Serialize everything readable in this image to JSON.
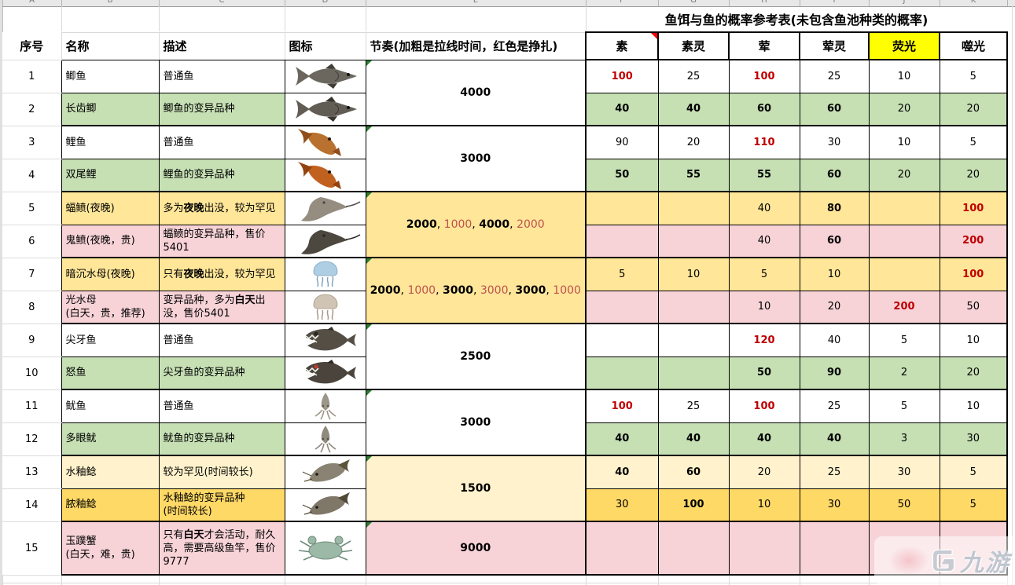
{
  "title": "鱼饵与鱼的概率参考表(未包含鱼池种类的概率)",
  "column_letters": [
    "A",
    "B",
    "C",
    "D",
    "E",
    "F",
    "G",
    "H",
    "I",
    "J",
    "K"
  ],
  "headers": {
    "index": "序号",
    "name": "名称",
    "desc": "描述",
    "icon": "图标",
    "tempo": "节奏(加粗是拉线时间，红色是挣扎)"
  },
  "bait_headers": [
    {
      "label": "素",
      "marker": "red-corner"
    },
    {
      "label": "素灵"
    },
    {
      "label": "荤"
    },
    {
      "label": "荤灵"
    },
    {
      "label": "荧光",
      "bg": "#ffff00"
    },
    {
      "label": "噬光"
    }
  ],
  "colors": {
    "green": "#c6e0b4",
    "yellow": "#ffe699",
    "pink": "#f7d3d8",
    "paleyellow": "#fff2cc",
    "gold": "#ffd966",
    "white": "#ffffff",
    "highlight": "#ffff00",
    "prob_red": "#c00000",
    "tempo_red": "#c0504d"
  },
  "rows": [
    {
      "no": "1",
      "bg": "white",
      "icon": "crucian-carp-icon",
      "name": [
        {
          "t": "鲫鱼"
        }
      ],
      "desc": [
        {
          "t": "普通鱼"
        }
      ],
      "probs": [
        {
          "v": "100",
          "red": 1,
          "bold": 1
        },
        {
          "v": "25"
        },
        {
          "v": "100",
          "red": 1,
          "bold": 1
        },
        {
          "v": "25"
        },
        {
          "v": "10"
        },
        {
          "v": "5"
        }
      ]
    },
    {
      "no": "2",
      "bg": "green",
      "icon": "longtooth-crucian-icon",
      "name": [
        {
          "t": "长齿鲫"
        }
      ],
      "desc": [
        {
          "t": "鲫鱼的变异品种"
        }
      ],
      "probs": [
        {
          "v": "40",
          "bold": 1
        },
        {
          "v": "40",
          "bold": 1
        },
        {
          "v": "60",
          "bold": 1
        },
        {
          "v": "60",
          "bold": 1
        },
        {
          "v": "20"
        },
        {
          "v": "20"
        }
      ]
    },
    {
      "no": "3",
      "bg": "white",
      "icon": "carp-icon",
      "name": [
        {
          "t": "鲤鱼"
        }
      ],
      "desc": [
        {
          "t": "普通鱼"
        }
      ],
      "probs": [
        {
          "v": "90"
        },
        {
          "v": "20"
        },
        {
          "v": "110",
          "red": 1,
          "bold": 1
        },
        {
          "v": "30"
        },
        {
          "v": "10"
        },
        {
          "v": "5"
        }
      ]
    },
    {
      "no": "4",
      "bg": "green",
      "icon": "twin-tail-carp-icon",
      "name": [
        {
          "t": "双尾鲤"
        }
      ],
      "desc": [
        {
          "t": "鲤鱼的变异品种"
        }
      ],
      "probs": [
        {
          "v": "50",
          "bold": 1
        },
        {
          "v": "55",
          "bold": 1
        },
        {
          "v": "55",
          "bold": 1
        },
        {
          "v": "60",
          "bold": 1
        },
        {
          "v": "20"
        },
        {
          "v": "20"
        }
      ]
    },
    {
      "no": "5",
      "bg": "yellow",
      "icon": "manta-ray-icon",
      "name": [
        {
          "t": "蝠鲼(夜晚)"
        }
      ],
      "desc": [
        {
          "t": "多为"
        },
        {
          "t": "夜晚",
          "bold": 1
        },
        {
          "t": "出没，较为罕见"
        }
      ],
      "probs": [
        {
          "v": ""
        },
        {
          "v": ""
        },
        {
          "v": "40"
        },
        {
          "v": "80",
          "bold": 1
        },
        {
          "v": ""
        },
        {
          "v": "100",
          "red": 1,
          "bold": 1
        }
      ]
    },
    {
      "no": "6",
      "bg": "pink",
      "icon": "ghost-ray-icon",
      "name": [
        {
          "t": "鬼鲼(夜晚，贵)"
        }
      ],
      "desc": [
        {
          "t": "蝠鲼的变异品种，售价5401"
        }
      ],
      "probs": [
        {
          "v": ""
        },
        {
          "v": ""
        },
        {
          "v": "40"
        },
        {
          "v": "60",
          "bold": 1
        },
        {
          "v": ""
        },
        {
          "v": "200",
          "red": 1,
          "bold": 1
        }
      ]
    },
    {
      "no": "7",
      "bg": "yellow",
      "icon": "dark-jellyfish-icon",
      "name": [
        {
          "t": "暗沉水母(夜晚)"
        }
      ],
      "desc": [
        {
          "t": "只有"
        },
        {
          "t": "夜晚",
          "bold": 1
        },
        {
          "t": "出没，较为罕见"
        }
      ],
      "probs": [
        {
          "v": "5"
        },
        {
          "v": "10"
        },
        {
          "v": "5"
        },
        {
          "v": "10"
        },
        {
          "v": ""
        },
        {
          "v": "100",
          "red": 1,
          "bold": 1
        }
      ]
    },
    {
      "no": "8",
      "bg": "pink",
      "icon": "light-jellyfish-icon",
      "name": [
        {
          "t": "光水母"
        },
        {
          "br": 1
        },
        {
          "t": "(白天，贵，推荐)"
        }
      ],
      "desc": [
        {
          "t": "变异品种，多为"
        },
        {
          "t": "白天",
          "bold": 1
        },
        {
          "t": "出没，售价5401"
        }
      ],
      "probs": [
        {
          "v": ""
        },
        {
          "v": ""
        },
        {
          "v": "10"
        },
        {
          "v": "20"
        },
        {
          "v": "200",
          "red": 1,
          "bold": 1
        },
        {
          "v": "50"
        }
      ]
    },
    {
      "no": "9",
      "bg": "white",
      "icon": "fangfish-icon",
      "name": [
        {
          "t": "尖牙鱼"
        }
      ],
      "desc": [
        {
          "t": "普通鱼"
        }
      ],
      "probs": [
        {
          "v": ""
        },
        {
          "v": ""
        },
        {
          "v": "120",
          "red": 1,
          "bold": 1
        },
        {
          "v": "40"
        },
        {
          "v": "5"
        },
        {
          "v": "10"
        }
      ]
    },
    {
      "no": "10",
      "bg": "green",
      "icon": "rage-fish-icon",
      "name": [
        {
          "t": "怒鱼"
        }
      ],
      "desc": [
        {
          "t": "尖牙鱼的变异品种"
        }
      ],
      "probs": [
        {
          "v": ""
        },
        {
          "v": ""
        },
        {
          "v": "50",
          "bold": 1
        },
        {
          "v": "90",
          "bold": 1
        },
        {
          "v": "2"
        },
        {
          "v": "20"
        }
      ]
    },
    {
      "no": "11",
      "bg": "white",
      "icon": "squid-icon",
      "name": [
        {
          "t": "鱿鱼"
        }
      ],
      "desc": [
        {
          "t": "普通鱼"
        }
      ],
      "probs": [
        {
          "v": "100",
          "red": 1,
          "bold": 1
        },
        {
          "v": "25"
        },
        {
          "v": "100",
          "red": 1,
          "bold": 1
        },
        {
          "v": "25"
        },
        {
          "v": "5"
        },
        {
          "v": "10"
        }
      ]
    },
    {
      "no": "12",
      "bg": "green",
      "icon": "many-eyed-squid-icon",
      "name": [
        {
          "t": "多眼鱿"
        }
      ],
      "desc": [
        {
          "t": "鱿鱼的变异品种"
        }
      ],
      "probs": [
        {
          "v": "40",
          "bold": 1
        },
        {
          "v": "40",
          "bold": 1
        },
        {
          "v": "40",
          "bold": 1
        },
        {
          "v": "40",
          "bold": 1
        },
        {
          "v": "3"
        },
        {
          "v": "30"
        }
      ]
    },
    {
      "no": "13",
      "bg": "paleyellow",
      "icon": "glaze-catfish-icon",
      "name": [
        {
          "t": "水釉鲶"
        }
      ],
      "desc": [
        {
          "t": "较为罕见(时间较长)"
        }
      ],
      "probs": [
        {
          "v": "40",
          "bold": 1
        },
        {
          "v": "60",
          "bold": 1
        },
        {
          "v": "20"
        },
        {
          "v": "25"
        },
        {
          "v": "30"
        },
        {
          "v": "5"
        }
      ]
    },
    {
      "no": "14",
      "bg": "gold",
      "icon": "pus-glaze-catfish-icon",
      "name": [
        {
          "t": "脓釉鲶"
        }
      ],
      "desc": [
        {
          "t": "水釉鲶的变异品种"
        },
        {
          "br": 1
        },
        {
          "t": "(时间较长)"
        }
      ],
      "probs": [
        {
          "v": "30"
        },
        {
          "v": "100",
          "bold": 1
        },
        {
          "v": "10"
        },
        {
          "v": "30"
        },
        {
          "v": "50"
        },
        {
          "v": "5"
        }
      ]
    },
    {
      "no": "15",
      "bg": "pink",
      "icon": "jade-crab-icon",
      "name": [
        {
          "t": "玉蹼蟹"
        },
        {
          "br": 1
        },
        {
          "t": "(白天，难，贵)"
        }
      ],
      "desc": [
        {
          "t": "只有"
        },
        {
          "t": "白天",
          "bold": 1
        },
        {
          "t": "才会活动，耐久高，需要高级鱼竿，售价9777"
        }
      ],
      "probs": [
        {
          "v": ""
        },
        {
          "v": ""
        },
        {
          "v": ""
        },
        {
          "v": ""
        },
        {
          "v": ""
        },
        {
          "v": ""
        }
      ]
    }
  ],
  "tempo_groups": [
    {
      "span": 2,
      "bg": "white",
      "segs": [
        {
          "t": "4000",
          "bold": 1
        }
      ]
    },
    {
      "span": 2,
      "bg": "white",
      "segs": [
        {
          "t": "3000",
          "bold": 1
        }
      ]
    },
    {
      "span": 2,
      "bg": "yellow",
      "segs": [
        {
          "t": "2000",
          "bold": 1
        },
        {
          "t": "1000",
          "red": 1
        },
        {
          "t": "4000",
          "bold": 1
        },
        {
          "t": "2000",
          "red": 1
        }
      ]
    },
    {
      "span": 2,
      "bg": "yellow",
      "segs": [
        {
          "t": "2000",
          "bold": 1
        },
        {
          "t": "1000",
          "red": 1
        },
        {
          "t": "3000",
          "bold": 1
        },
        {
          "t": "3000",
          "red": 1
        },
        {
          "t": "3000",
          "bold": 1
        },
        {
          "t": "1000",
          "red": 1
        }
      ]
    },
    {
      "span": 2,
      "bg": "white",
      "segs": [
        {
          "t": "2500",
          "bold": 1
        }
      ]
    },
    {
      "span": 2,
      "bg": "white",
      "segs": [
        {
          "t": "3000",
          "bold": 1
        }
      ]
    },
    {
      "span": 2,
      "bg": "paleyellow",
      "segs": [
        {
          "t": "1500",
          "bold": 1
        }
      ]
    },
    {
      "span": 1,
      "bg": "pink",
      "segs": [
        {
          "t": "9000",
          "bold": 1
        }
      ]
    }
  ],
  "watermark": {
    "text": "九游"
  }
}
